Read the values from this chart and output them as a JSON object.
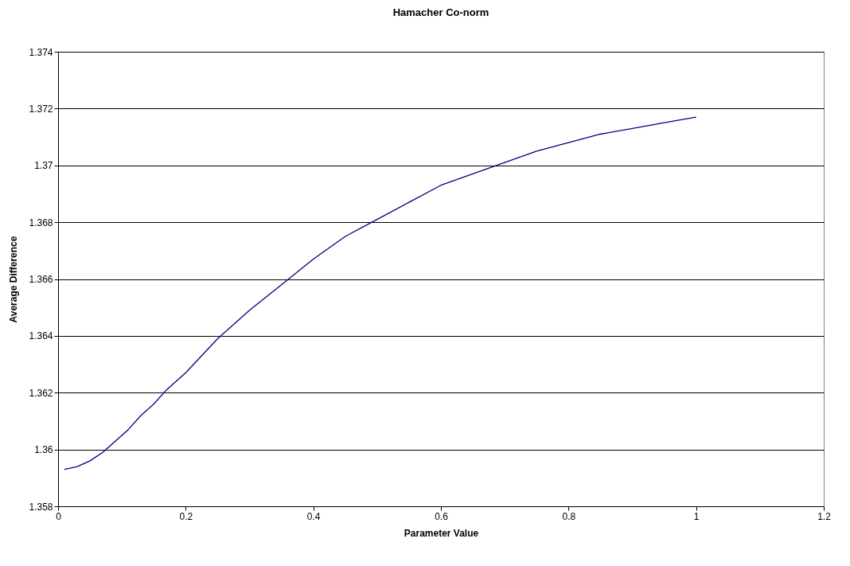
{
  "chart_data": {
    "type": "line",
    "title": "Hamacher Co-norm",
    "xlabel": "Parameter Value",
    "ylabel": "Average Difference",
    "x": [
      0.01,
      0.03,
      0.05,
      0.07,
      0.09,
      0.11,
      0.13,
      0.15,
      0.17,
      0.2,
      0.25,
      0.3,
      0.35,
      0.4,
      0.45,
      0.5,
      0.55,
      0.6,
      0.65,
      0.7,
      0.75,
      0.8,
      0.85,
      0.9,
      0.95,
      1.0
    ],
    "series": [
      {
        "color": "#000080",
        "values": [
          1.3593,
          1.3594,
          1.3596,
          1.3599,
          1.3603,
          1.3607,
          1.3612,
          1.3616,
          1.3621,
          1.3627,
          1.3639,
          1.3649,
          1.3658,
          1.3667,
          1.3675,
          1.3681,
          1.3687,
          1.3693,
          1.3697,
          1.3701,
          1.3705,
          1.3708,
          1.3711,
          1.3713,
          1.3715,
          1.3717
        ]
      }
    ],
    "xlim": [
      0,
      1.2
    ],
    "xticks": [
      0,
      0.2,
      0.4,
      0.6,
      0.8,
      1,
      1.2
    ],
    "ylim": [
      1.358,
      1.374
    ],
    "yticks": [
      1.358,
      1.36,
      1.362,
      1.364,
      1.366,
      1.368,
      1.37,
      1.372,
      1.374
    ],
    "grid": "y",
    "legend": false,
    "marker": "none",
    "line_style": "solid"
  }
}
